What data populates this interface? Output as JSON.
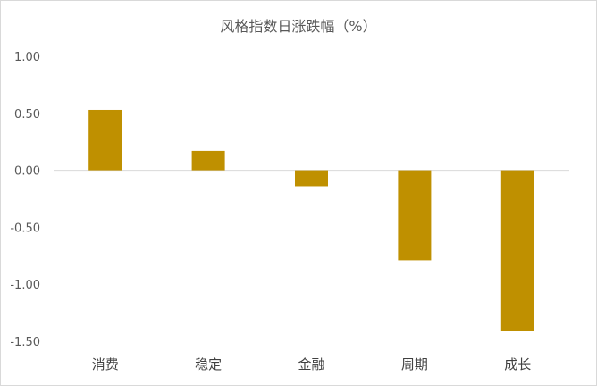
{
  "chart_data": {
    "type": "bar",
    "title": "风格指数日涨跌幅（%）",
    "xlabel": "",
    "ylabel": "",
    "categories": [
      "消费",
      "稳定",
      "金融",
      "周期",
      "成长"
    ],
    "values": [
      0.53,
      0.17,
      -0.14,
      -0.79,
      -1.41
    ],
    "ylim": [
      -1.5,
      1.0
    ],
    "yticks": [
      "1.00",
      "0.50",
      "0.00",
      "-0.50",
      "-1.00",
      "-1.50"
    ],
    "ytick_values": [
      1.0,
      0.5,
      0.0,
      -0.5,
      -1.0,
      -1.5
    ],
    "grid": false,
    "legend": "none",
    "bar_color": "#BF9000",
    "axis_color": "#d9d9d9"
  }
}
